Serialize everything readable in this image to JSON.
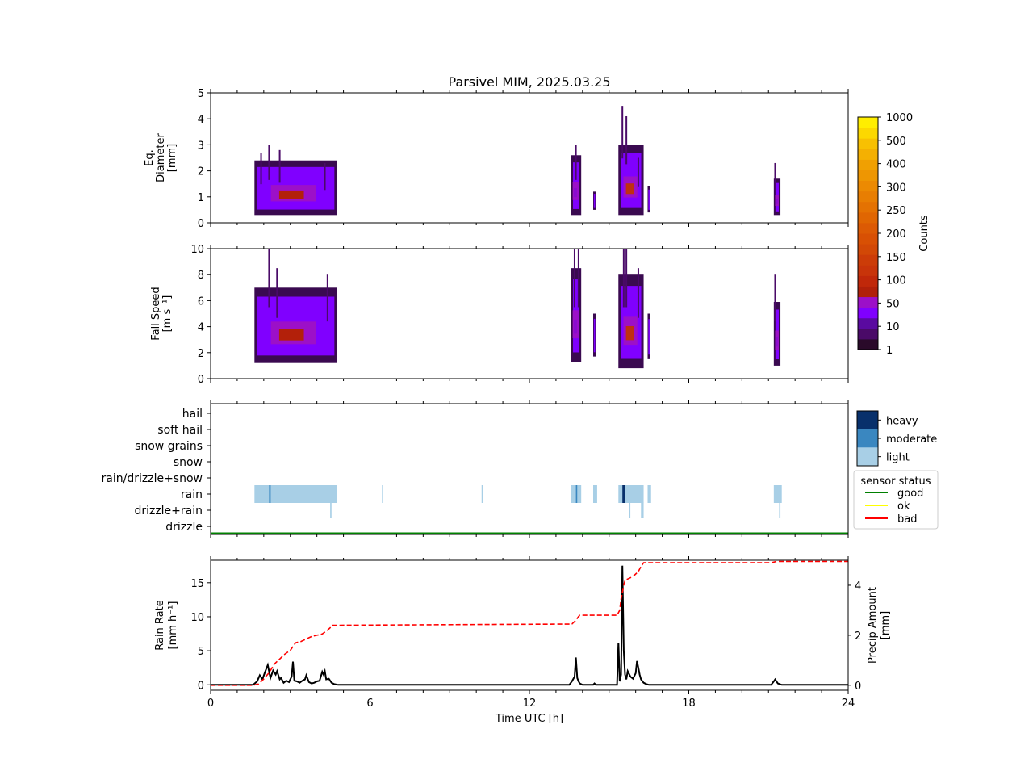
{
  "figure": {
    "title": "Parsivel MIM, 2025.03.25"
  },
  "chart_data": [
    {
      "id": "diameter",
      "type": "heatmap",
      "ylabel": [
        "Eq.",
        "Diameter",
        "[mm]"
      ],
      "xlim": [
        0,
        24
      ],
      "ylim": [
        0,
        5
      ],
      "yticks": [
        "0",
        "1",
        "2",
        "3",
        "4",
        "5"
      ],
      "blocks": [
        {
          "t0": 1.65,
          "t1": 4.75,
          "d0": 0.3,
          "d1": 2.4,
          "core": "#b3200a"
        },
        {
          "t0": 13.55,
          "t1": 13.95,
          "d0": 0.3,
          "d1": 2.6,
          "core": "#8a0ccf"
        },
        {
          "t0": 14.4,
          "t1": 14.5,
          "d0": 0.5,
          "d1": 1.2,
          "core": "#8a0ccf"
        },
        {
          "t0": 15.35,
          "t1": 16.3,
          "d0": 0.3,
          "d1": 3.0,
          "core": "#c03010"
        },
        {
          "t0": 16.45,
          "t1": 16.55,
          "d0": 0.4,
          "d1": 1.4,
          "core": "#8a0ccf"
        },
        {
          "t0": 21.2,
          "t1": 21.45,
          "d0": 0.3,
          "d1": 1.7,
          "core": "#8a0ccf"
        }
      ],
      "peaks": [
        {
          "t": 1.9,
          "d": 2.7
        },
        {
          "t": 2.2,
          "d": 3.0
        },
        {
          "t": 2.6,
          "d": 2.8
        },
        {
          "t": 4.3,
          "d": 2.3
        },
        {
          "t": 13.75,
          "d": 3.0
        },
        {
          "t": 15.5,
          "d": 4.5
        },
        {
          "t": 15.65,
          "d": 4.1
        },
        {
          "t": 16.1,
          "d": 2.5
        },
        {
          "t": 21.25,
          "d": 2.3
        }
      ]
    },
    {
      "id": "fallspeed",
      "type": "heatmap",
      "ylabel": [
        "Fall Speed",
        "[m s⁻¹]"
      ],
      "xlim": [
        0,
        24
      ],
      "ylim": [
        0,
        10
      ],
      "yticks": [
        "0",
        "2",
        "4",
        "6",
        "8",
        "10"
      ],
      "blocks": [
        {
          "t0": 1.65,
          "t1": 4.75,
          "d0": 1.2,
          "d1": 7.0,
          "core": "#b3200a"
        },
        {
          "t0": 13.55,
          "t1": 13.95,
          "d0": 1.3,
          "d1": 8.5,
          "core": "#8a0ccf"
        },
        {
          "t0": 14.4,
          "t1": 14.5,
          "d0": 1.7,
          "d1": 5.0,
          "core": "#8a0ccf"
        },
        {
          "t0": 15.35,
          "t1": 16.3,
          "d0": 0.8,
          "d1": 8.0,
          "core": "#c03010"
        },
        {
          "t0": 16.45,
          "t1": 16.55,
          "d0": 1.5,
          "d1": 5.0,
          "core": "#8a0ccf"
        },
        {
          "t0": 21.2,
          "t1": 21.45,
          "d0": 1.0,
          "d1": 5.9,
          "core": "#8a0ccf"
        }
      ],
      "peaks": [
        {
          "t": 2.2,
          "d": 10.0
        },
        {
          "t": 2.5,
          "d": 8.5
        },
        {
          "t": 4.4,
          "d": 8.0
        },
        {
          "t": 13.7,
          "d": 10.0
        },
        {
          "t": 13.85,
          "d": 10.0
        },
        {
          "t": 15.55,
          "d": 10.0
        },
        {
          "t": 15.65,
          "d": 10.0
        },
        {
          "t": 16.1,
          "d": 8.5
        },
        {
          "t": 21.25,
          "d": 8.0
        }
      ]
    },
    {
      "id": "counts_colorbar",
      "type": "colorbar",
      "label": "Counts",
      "ticks": [
        "1",
        "10",
        "50",
        "100",
        "150",
        "200",
        "250",
        "300",
        "400",
        "500",
        "1000"
      ],
      "colors": [
        "#2a0a2a",
        "#4a0a68",
        "#5a0aa0",
        "#8000ff",
        "#9c10c8",
        "#b0200a",
        "#c0280a",
        "#c8340a",
        "#cc3c08",
        "#d24806",
        "#d85004",
        "#dc5a04",
        "#e06602",
        "#e47202",
        "#e87e02",
        "#ec8a02",
        "#ee9602",
        "#f0a002",
        "#f4b002",
        "#f8c002",
        "#fcd800",
        "#ffee00"
      ]
    },
    {
      "id": "weather_code",
      "type": "timeline",
      "categories": [
        "drizzle",
        "drizzle+rain",
        "rain",
        "rain/drizzle+snow",
        "snow",
        "snow grains",
        "soft hail",
        "hail"
      ],
      "intensity_legend": [
        "light",
        "moderate",
        "heavy"
      ],
      "intensity_colors": {
        "light": "#a8cfe6",
        "moderate": "#3a87c0",
        "heavy": "#08306b"
      },
      "status_legend_title": "sensor status",
      "status_legend": [
        {
          "label": "good",
          "color": "#008000"
        },
        {
          "label": "ok",
          "color": "#ffff00"
        },
        {
          "label": "bad",
          "color": "#ff0000"
        }
      ],
      "events": [
        {
          "category": "rain",
          "t0": 1.65,
          "t1": 4.75,
          "intensity": "light"
        },
        {
          "category": "rain",
          "t0": 2.2,
          "t1": 2.26,
          "intensity": "moderate"
        },
        {
          "category": "rain",
          "t0": 6.45,
          "t1": 6.5,
          "intensity": "light"
        },
        {
          "category": "rain",
          "t0": 10.2,
          "t1": 10.25,
          "intensity": "light"
        },
        {
          "category": "rain",
          "t0": 13.55,
          "t1": 13.95,
          "intensity": "light"
        },
        {
          "category": "rain",
          "t0": 13.75,
          "t1": 13.8,
          "intensity": "moderate"
        },
        {
          "category": "rain",
          "t0": 14.4,
          "t1": 14.55,
          "intensity": "light"
        },
        {
          "category": "rain",
          "t0": 15.35,
          "t1": 16.3,
          "intensity": "light"
        },
        {
          "category": "rain",
          "t0": 15.5,
          "t1": 15.6,
          "intensity": "heavy"
        },
        {
          "category": "rain",
          "t0": 16.45,
          "t1": 16.58,
          "intensity": "light"
        },
        {
          "category": "rain",
          "t0": 21.2,
          "t1": 21.5,
          "intensity": "light"
        },
        {
          "category": "drizzle+rain",
          "t0": 4.5,
          "t1": 4.55,
          "intensity": "light"
        },
        {
          "category": "drizzle+rain",
          "t0": 15.75,
          "t1": 15.8,
          "intensity": "light"
        },
        {
          "category": "drizzle+rain",
          "t0": 16.2,
          "t1": 16.3,
          "intensity": "light"
        },
        {
          "category": "drizzle+rain",
          "t0": 21.4,
          "t1": 21.45,
          "intensity": "light"
        }
      ],
      "status_line": {
        "status": "good",
        "t0": 0,
        "t1": 24
      }
    },
    {
      "id": "rain",
      "type": "line",
      "xlabel": "Time UTC [h]",
      "xticks": [
        "0",
        "6",
        "12",
        "18",
        "24"
      ],
      "xlim": [
        0,
        24
      ],
      "ylabel": [
        "Rain Rate",
        "[mm h⁻¹]"
      ],
      "ylim": [
        -0.8,
        18.3
      ],
      "yticks": [
        "0",
        "5",
        "10",
        "15"
      ],
      "y2label": [
        "Precip Amount",
        "[mm]"
      ],
      "y2lim": [
        -0.2,
        5.0
      ],
      "y2ticks": [
        "0",
        "2",
        "4"
      ],
      "series": [
        {
          "axis": "left",
          "color": "#000000",
          "style": "solid",
          "x": [
            0,
            1.6,
            1.75,
            1.85,
            1.95,
            2.05,
            2.15,
            2.25,
            2.35,
            2.45,
            2.5,
            2.6,
            2.65,
            2.75,
            2.85,
            2.95,
            3.05,
            3.1,
            3.15,
            3.25,
            3.35,
            3.45,
            3.55,
            3.6,
            3.7,
            3.8,
            3.9,
            4.0,
            4.1,
            4.2,
            4.25,
            4.3,
            4.35,
            4.45,
            4.55,
            4.65,
            4.8,
            13.5,
            13.6,
            13.7,
            13.75,
            13.8,
            13.85,
            13.9,
            14.0,
            14.4,
            14.45,
            14.5,
            15.3,
            15.35,
            15.4,
            15.45,
            15.5,
            15.55,
            15.6,
            15.65,
            15.7,
            15.8,
            15.9,
            16.0,
            16.05,
            16.1,
            16.15,
            16.2,
            16.3,
            16.4,
            16.5,
            21.1,
            21.2,
            21.25,
            21.35,
            21.5,
            24
          ],
          "values": [
            0,
            0,
            0.5,
            1.4,
            0.8,
            1.9,
            2.9,
            1.0,
            2.1,
            1.5,
            2.0,
            0.8,
            1.0,
            0.3,
            0.6,
            0.4,
            1.2,
            3.4,
            0.6,
            0.5,
            0.3,
            0.6,
            0.8,
            1.4,
            0.4,
            0.2,
            0.3,
            0.5,
            0.6,
            1.9,
            1.5,
            2.0,
            0.8,
            0.9,
            0.3,
            0.1,
            0,
            0,
            0.5,
            1.2,
            4.0,
            1.0,
            0.5,
            0.2,
            0,
            0,
            0.2,
            0,
            0,
            6.2,
            0.5,
            1.5,
            17.5,
            5.0,
            1.5,
            0.8,
            2.0,
            1.2,
            0.9,
            1.7,
            3.5,
            2.5,
            1.5,
            0.8,
            0.3,
            0.1,
            0,
            0,
            0.5,
            0.8,
            0.2,
            0,
            0
          ]
        },
        {
          "axis": "right",
          "color": "#ff0000",
          "style": "dashed",
          "x": [
            0,
            1.6,
            1.8,
            2.0,
            2.2,
            2.4,
            2.6,
            2.8,
            3.0,
            3.2,
            3.4,
            3.6,
            3.8,
            4.0,
            4.2,
            4.4,
            4.6,
            4.8,
            13.6,
            13.75,
            13.85,
            13.9,
            15.3,
            15.4,
            15.45,
            15.55,
            15.6,
            15.7,
            15.9,
            16.0,
            16.1,
            16.2,
            16.3,
            16.5,
            21.1,
            21.3,
            24
          ],
          "values": [
            0,
            0,
            0.05,
            0.25,
            0.5,
            0.85,
            1.05,
            1.25,
            1.4,
            1.7,
            1.75,
            1.85,
            1.95,
            2.0,
            2.05,
            2.2,
            2.4,
            2.4,
            2.45,
            2.6,
            2.75,
            2.8,
            2.8,
            3.0,
            3.45,
            4.0,
            4.2,
            4.25,
            4.35,
            4.45,
            4.55,
            4.75,
            4.9,
            4.9,
            4.9,
            4.95,
            4.95
          ]
        }
      ]
    }
  ]
}
